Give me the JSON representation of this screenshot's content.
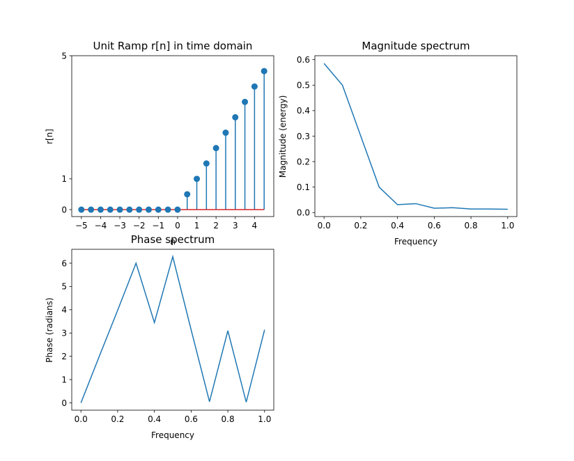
{
  "chart_data": [
    {
      "id": "ramp",
      "type": "stem",
      "title": "Unit Ramp r[n] in time domain",
      "xlabel": "n",
      "ylabel": "r[n]",
      "xlim": [
        -5.5,
        5.0
      ],
      "ylim": [
        -0.225,
        5.0
      ],
      "xticks": [
        -5,
        -4,
        -3,
        -2,
        -1,
        0,
        1,
        2,
        3,
        4
      ],
      "yticks": [
        0,
        1,
        5
      ],
      "x": [
        -5,
        -4.5,
        -4,
        -3.5,
        -3,
        -2.5,
        -2,
        -1.5,
        -1,
        -0.5,
        0,
        0.5,
        1,
        1.5,
        2,
        2.5,
        3,
        3.5,
        4,
        4.5
      ],
      "y": [
        0,
        0,
        0,
        0,
        0,
        0,
        0,
        0,
        0,
        0,
        0,
        0.5,
        1,
        1.5,
        2,
        2.5,
        3,
        3.5,
        4,
        4.5
      ],
      "colors": {
        "stem": "#1f77b4",
        "baseline": "#d62728"
      }
    },
    {
      "id": "magnitude",
      "type": "line",
      "title": "Magnitude spectrum",
      "xlabel": "Frequency",
      "ylabel": "Magnitude (energy)",
      "xlim": [
        -0.05,
        1.05
      ],
      "ylim": [
        -0.0157,
        0.6155
      ],
      "xticks": [
        0.0,
        0.2,
        0.4,
        0.6,
        0.8,
        1.0
      ],
      "yticks": [
        0.0,
        0.1,
        0.2,
        0.3,
        0.4,
        0.5,
        0.6
      ],
      "x": [
        0.0,
        0.1,
        0.2,
        0.3,
        0.4,
        0.5,
        0.6,
        0.7,
        0.8,
        0.9,
        1.0
      ],
      "y": [
        0.585,
        0.5,
        0.3,
        0.1,
        0.031,
        0.035,
        0.017,
        0.019,
        0.014,
        0.014,
        0.013
      ],
      "colors": {
        "line": "#1f77b4"
      }
    },
    {
      "id": "phase",
      "type": "line",
      "title": "Phase spectrum",
      "xlabel": "Frequency",
      "ylabel": "Phase (radians)",
      "xlim": [
        -0.05,
        1.05
      ],
      "ylim": [
        -0.314,
        6.597
      ],
      "xticks": [
        0.0,
        0.2,
        0.4,
        0.6,
        0.8,
        1.0
      ],
      "yticks": [
        0,
        1,
        2,
        3,
        4,
        5,
        6
      ],
      "x": [
        0.0,
        0.1,
        0.2,
        0.3,
        0.4,
        0.5,
        0.6,
        0.7,
        0.8,
        0.9,
        1.0
      ],
      "y": [
        0.0,
        2.0,
        3.98,
        6.0,
        3.45,
        6.28,
        3.14,
        0.05,
        3.1,
        0.03,
        3.14
      ],
      "colors": {
        "line": "#1f77b4"
      }
    }
  ]
}
